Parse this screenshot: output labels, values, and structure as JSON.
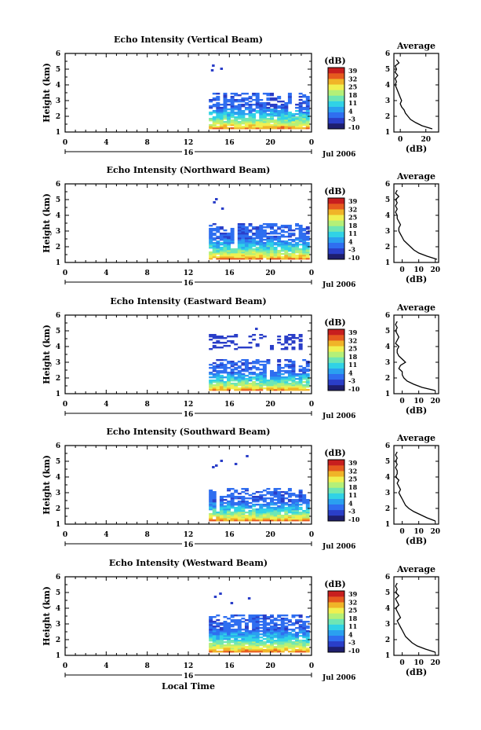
{
  "chart_data": [
    {
      "type": "heatmap",
      "title": "Echo Intensity (Vertical Beam)",
      "ylabel": "Height (km)",
      "x_ticks": [
        "0",
        "4",
        "8",
        "12",
        "16",
        "20",
        "0"
      ],
      "x_range": [
        0,
        24
      ],
      "y_ticks": [
        "1",
        "2",
        "3",
        "4",
        "5",
        "6"
      ],
      "y_range": [
        1,
        6
      ],
      "date_day": "16",
      "date_label": "Jul 2006",
      "colorbar_unit": "(dB)",
      "colorbar_ticks": [
        "39",
        "32",
        "25",
        "18",
        "11",
        "4",
        "-3",
        "-10"
      ],
      "data_region": {
        "x_start": 14,
        "x_end": 23.6,
        "y_min": 1.2,
        "y_max": 3.5
      },
      "isolated_echoes": [
        [
          14.2,
          4.9
        ],
        [
          14.3,
          5.2
        ],
        [
          15.1,
          5.0
        ]
      ],
      "profile": {
        "title": "Average",
        "xlabel": "(dB)",
        "x_ticks": [
          "0",
          "20"
        ],
        "x_range": [
          -5,
          30
        ],
        "height": [
          1.2,
          1.4,
          1.6,
          1.8,
          2.0,
          2.2,
          2.4,
          2.6,
          2.8,
          3.0,
          3.2,
          3.4,
          3.6,
          3.8,
          4.0,
          4.2,
          4.4,
          4.6,
          4.8,
          5.0,
          5.2,
          5.4,
          5.6
        ],
        "db": [
          25,
          17,
          12,
          8,
          6,
          4,
          3,
          1,
          0,
          1,
          0,
          -1,
          -2,
          -3,
          -4,
          -3,
          -4,
          -2,
          -4,
          -3,
          -4,
          -1,
          -3
        ]
      }
    },
    {
      "type": "heatmap",
      "title": "Echo Intensity (Northward Beam)",
      "ylabel": "Height (km)",
      "x_ticks": [
        "0",
        "4",
        "8",
        "12",
        "16",
        "20",
        "0"
      ],
      "x_range": [
        0,
        24
      ],
      "y_ticks": [
        "1",
        "2",
        "3",
        "4",
        "5",
        "6"
      ],
      "y_range": [
        1,
        6
      ],
      "date_day": "16",
      "date_label": "Jul 2006",
      "colorbar_unit": "(dB)",
      "colorbar_ticks": [
        "39",
        "32",
        "25",
        "18",
        "11",
        "4",
        "-3",
        "-10"
      ],
      "data_region": {
        "x_start": 14,
        "x_end": 23.6,
        "y_min": 1.2,
        "y_max": 3.5
      },
      "isolated_echoes": [
        [
          14.4,
          4.8
        ],
        [
          14.6,
          5.0
        ],
        [
          15.2,
          4.4
        ]
      ],
      "profile": {
        "title": "Average",
        "xlabel": "(dB)",
        "x_ticks": [
          "0",
          "10",
          "20"
        ],
        "x_range": [
          -5,
          22
        ],
        "height": [
          1.2,
          1.4,
          1.6,
          1.8,
          2.0,
          2.2,
          2.4,
          2.6,
          2.8,
          3.0,
          3.2,
          3.4,
          3.6,
          3.8,
          4.0,
          4.2,
          4.4,
          4.6,
          4.8,
          5.0,
          5.2,
          5.4,
          5.6
        ],
        "db": [
          21,
          15,
          10,
          7,
          5,
          3,
          1,
          0,
          -1,
          -2,
          -2,
          -1,
          -2,
          -3,
          -3,
          -4,
          -3,
          -4,
          -3,
          -4,
          -2,
          -4,
          -3
        ]
      }
    },
    {
      "type": "heatmap",
      "title": "Echo Intensity (Eastward Beam)",
      "ylabel": "Height (km)",
      "x_ticks": [
        "0",
        "4",
        "8",
        "12",
        "16",
        "20",
        "0"
      ],
      "x_range": [
        0,
        24
      ],
      "y_ticks": [
        "1",
        "2",
        "3",
        "4",
        "5",
        "6"
      ],
      "y_range": [
        1,
        6
      ],
      "date_day": "16",
      "date_label": "Jul 2006",
      "colorbar_unit": "(dB)",
      "colorbar_ticks": [
        "39",
        "32",
        "25",
        "18",
        "11",
        "4",
        "-3",
        "-10"
      ],
      "data_region": {
        "x_start": 14,
        "x_end": 23.6,
        "y_min": 1.2,
        "y_max": 3.2
      },
      "upper_layer": {
        "y_min": 3.8,
        "y_max": 4.7
      },
      "isolated_echoes": [
        [
          18.5,
          5.1
        ]
      ],
      "profile": {
        "title": "Average",
        "xlabel": "(dB)",
        "x_ticks": [
          "0",
          "10",
          "20"
        ],
        "x_range": [
          -5,
          22
        ],
        "height": [
          1.2,
          1.4,
          1.6,
          1.8,
          2.0,
          2.2,
          2.4,
          2.6,
          2.8,
          3.0,
          3.2,
          3.4,
          3.6,
          3.8,
          4.0,
          4.2,
          4.4,
          4.6,
          4.8,
          5.0,
          5.2,
          5.4,
          5.6
        ],
        "db": [
          20,
          12,
          7,
          3,
          1,
          0,
          0,
          -2,
          -1,
          2,
          0,
          -2,
          -3,
          -3,
          -2,
          -4,
          -3,
          -2,
          -3,
          -4,
          -3,
          -4,
          -3
        ]
      }
    },
    {
      "type": "heatmap",
      "title": "Echo Intensity (Southward Beam)",
      "ylabel": "Height (km)",
      "x_ticks": [
        "0",
        "4",
        "8",
        "12",
        "16",
        "20",
        "0"
      ],
      "x_range": [
        0,
        24
      ],
      "y_ticks": [
        "1",
        "2",
        "3",
        "4",
        "5",
        "6"
      ],
      "y_range": [
        1,
        6
      ],
      "date_day": "16",
      "date_label": "Jul 2006",
      "colorbar_unit": "(dB)",
      "colorbar_ticks": [
        "39",
        "32",
        "25",
        "18",
        "11",
        "4",
        "-3",
        "-10"
      ],
      "data_region": {
        "x_start": 14,
        "x_end": 23.6,
        "y_min": 1.2,
        "y_max": 3.3
      },
      "isolated_echoes": [
        [
          14.3,
          4.6
        ],
        [
          14.6,
          4.7
        ],
        [
          15.1,
          5.0
        ],
        [
          16.5,
          4.8
        ],
        [
          17.6,
          5.3
        ]
      ],
      "profile": {
        "title": "Average",
        "xlabel": "(dB)",
        "x_ticks": [
          "0",
          "10",
          "20"
        ],
        "x_range": [
          -5,
          22
        ],
        "height": [
          1.2,
          1.4,
          1.6,
          1.8,
          2.0,
          2.2,
          2.4,
          2.6,
          2.8,
          3.0,
          3.2,
          3.4,
          3.6,
          3.8,
          4.0,
          4.2,
          4.4,
          4.6,
          4.8,
          5.0,
          5.2,
          5.4,
          5.6
        ],
        "db": [
          20,
          15,
          11,
          7,
          4,
          2,
          1,
          0,
          -1,
          -2,
          -1,
          -2,
          -3,
          -2,
          -4,
          -3,
          -3,
          -4,
          -3,
          -4,
          -3,
          -4,
          -3
        ]
      }
    },
    {
      "type": "heatmap",
      "title": "Echo Intensity (Westward Beam)",
      "ylabel": "Height (km)",
      "xlabel": "Local Time",
      "x_ticks": [
        "0",
        "4",
        "8",
        "12",
        "16",
        "20",
        "0"
      ],
      "x_range": [
        0,
        24
      ],
      "y_ticks": [
        "1",
        "2",
        "3",
        "4",
        "5",
        "6"
      ],
      "y_range": [
        1,
        6
      ],
      "date_day": "16",
      "date_label": "Jul 2006",
      "colorbar_unit": "(dB)",
      "colorbar_ticks": [
        "39",
        "32",
        "25",
        "18",
        "11",
        "4",
        "-3",
        "-10"
      ],
      "data_region": {
        "x_start": 14,
        "x_end": 23.6,
        "y_min": 1.2,
        "y_max": 3.6
      },
      "isolated_echoes": [
        [
          14.5,
          4.7
        ],
        [
          15.0,
          4.9
        ],
        [
          16.1,
          4.3
        ],
        [
          17.8,
          4.6
        ]
      ],
      "profile": {
        "title": "Average",
        "xlabel": "(dB)",
        "x_ticks": [
          "0",
          "10",
          "20"
        ],
        "x_range": [
          -5,
          22
        ],
        "height": [
          1.2,
          1.4,
          1.6,
          1.8,
          2.0,
          2.2,
          2.4,
          2.6,
          2.8,
          3.0,
          3.2,
          3.4,
          3.6,
          3.8,
          4.0,
          4.2,
          4.4,
          4.6,
          4.8,
          5.0,
          5.2,
          5.4,
          5.6
        ],
        "db": [
          20,
          14,
          9,
          6,
          4,
          2,
          1,
          0,
          -1,
          -2,
          -3,
          -1,
          -2,
          -3,
          -4,
          -2,
          -3,
          -4,
          -2,
          -4,
          -3,
          -4,
          -3
        ]
      }
    }
  ],
  "colors": {
    "colormap": [
      "#1e1e6e",
      "#2a3ec8",
      "#2f6ef0",
      "#2aa0f0",
      "#30d2e6",
      "#6ee6b4",
      "#b4f078",
      "#f0f050",
      "#f0b428",
      "#e65a1e",
      "#c81e1e"
    ]
  }
}
